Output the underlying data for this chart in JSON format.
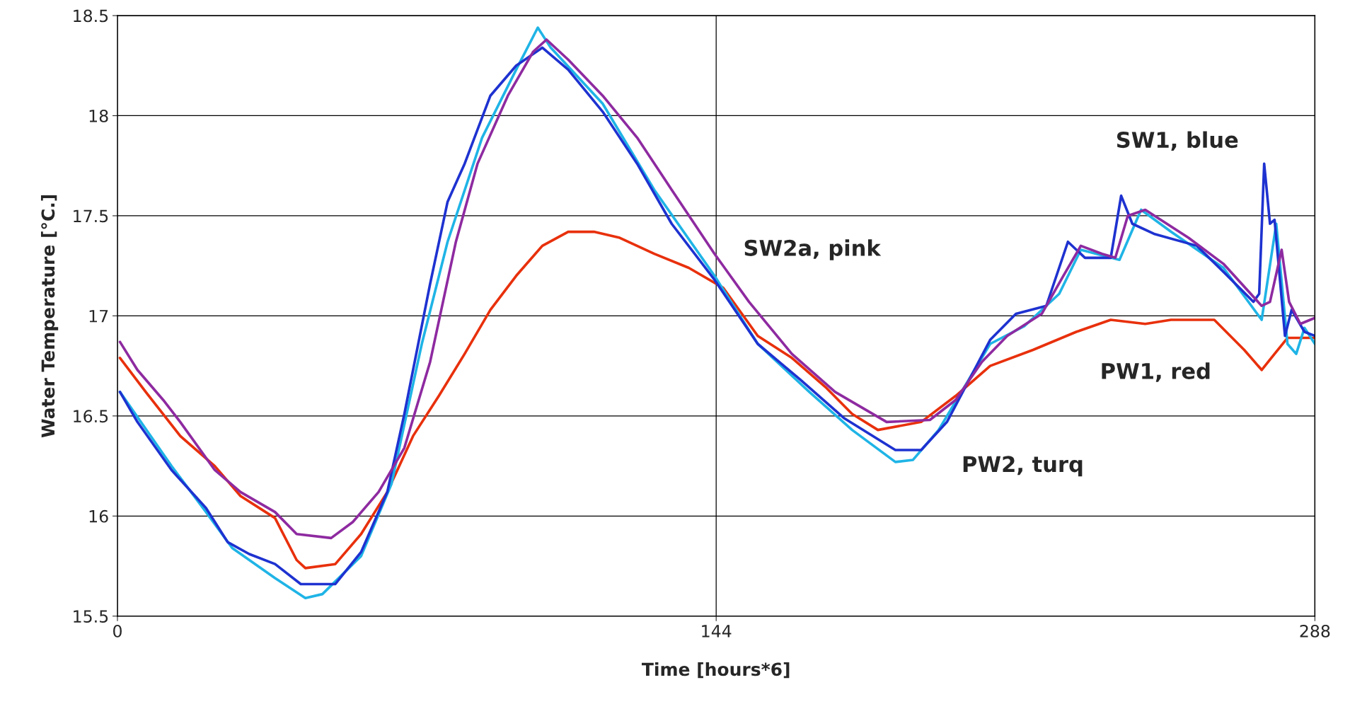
{
  "chart_data": {
    "type": "line",
    "xlabel": "Time [hours*6]",
    "ylabel": "Water Temperature [°C.]",
    "xlim": [
      0,
      288
    ],
    "xticks": [
      0,
      144,
      288
    ],
    "ylim": [
      15.5,
      18.5
    ],
    "yticks": [
      15.5,
      16,
      16.5,
      17,
      17.5,
      18,
      18.5
    ],
    "grid": true,
    "marker": "none",
    "line_style": "solid",
    "annotations": [
      "SW1, blue",
      "SW2a, pink",
      "PW1, red",
      "PW2, turq"
    ],
    "series": [
      {
        "color": "#e8300c",
        "x": [
          0.6,
          6.8,
          15.1,
          23.4,
          29.6,
          37.9,
          43.1,
          45.2,
          52.4,
          58.6,
          64.9,
          71.1,
          77.3,
          83.5,
          89.7,
          95.9,
          102.2,
          108.4,
          114.6,
          120.8,
          129.1,
          137.4,
          145.7,
          154,
          162.2,
          170.5,
          176.7,
          182.9,
          193.3,
          201.6,
          209.9,
          220.2,
          230.6,
          238.9,
          247.2,
          253.4,
          263.8,
          271,
          275.2,
          278.3,
          281.4,
          288
        ],
        "values": [
          16.79,
          16.62,
          16.4,
          16.25,
          16.1,
          15.99,
          15.78,
          15.74,
          15.76,
          15.91,
          16.12,
          16.4,
          16.6,
          16.81,
          17.03,
          17.2,
          17.35,
          17.42,
          17.42,
          17.39,
          17.31,
          17.24,
          17.14,
          16.9,
          16.79,
          16.64,
          16.51,
          16.43,
          16.47,
          16.6,
          16.75,
          16.83,
          16.92,
          16.98,
          16.96,
          16.98,
          16.98,
          16.83,
          16.73,
          16.81,
          16.89,
          16.89
        ]
      },
      {
        "color": "#1fb4e6",
        "x": [
          0.6,
          13,
          21.3,
          27.6,
          37.9,
          45.2,
          49.3,
          58.6,
          65.9,
          73.2,
          79.4,
          87.7,
          95.9,
          101.1,
          104.2,
          116.7,
          129.1,
          143.6,
          154,
          166.4,
          176.7,
          187.1,
          191.3,
          197.5,
          209.9,
          218.2,
          226.5,
          231.7,
          241,
          246.2,
          253.4,
          266,
          275.2,
          278.7,
          281.4,
          283.5,
          285.5,
          288
        ],
        "values": [
          16.62,
          16.25,
          16.02,
          15.84,
          15.69,
          15.59,
          15.61,
          15.8,
          16.16,
          16.86,
          17.37,
          17.89,
          18.23,
          18.44,
          18.34,
          18.06,
          17.63,
          17.2,
          16.86,
          16.62,
          16.43,
          16.27,
          16.28,
          16.43,
          16.86,
          16.95,
          17.11,
          17.33,
          17.28,
          17.53,
          17.42,
          17.24,
          16.98,
          17.46,
          16.86,
          16.81,
          16.94,
          16.86
        ]
      },
      {
        "color": "#1e32d0",
        "x": [
          0.6,
          4.8,
          13,
          21.3,
          26.5,
          31.7,
          37.9,
          44.1,
          52.4,
          58.6,
          64.9,
          69,
          75.2,
          79.4,
          83.5,
          89.7,
          95.9,
          102.2,
          108.4,
          116.7,
          125,
          133.3,
          143.6,
          154,
          164.3,
          174.7,
          187.1,
          193.3,
          199.5,
          209.9,
          216.1,
          223.4,
          228.6,
          232.7,
          238.9,
          241.4,
          244.1,
          249.3,
          259.6,
          266,
          273.2,
          274.6,
          275.8,
          277.2,
          278.3,
          280.8,
          282.4,
          285.5,
          288
        ],
        "values": [
          16.62,
          16.47,
          16.23,
          16.04,
          15.87,
          15.81,
          15.76,
          15.66,
          15.66,
          15.82,
          16.12,
          16.51,
          17.16,
          17.57,
          17.76,
          18.1,
          18.25,
          18.34,
          18.23,
          18.02,
          17.76,
          17.46,
          17.18,
          16.86,
          16.68,
          16.49,
          16.33,
          16.33,
          16.47,
          16.88,
          17.01,
          17.05,
          17.37,
          17.29,
          17.29,
          17.6,
          17.46,
          17.41,
          17.35,
          17.22,
          17.07,
          17.11,
          17.76,
          17.46,
          17.48,
          16.9,
          17.03,
          16.92,
          16.9
        ]
      },
      {
        "color": "#8e2aa0",
        "x": [
          0.6,
          4.8,
          11,
          15.1,
          23.4,
          29.6,
          37.9,
          43.1,
          51.4,
          56.6,
          62.8,
          69,
          75.2,
          81.4,
          86.6,
          93.9,
          100,
          103.2,
          108.4,
          116.7,
          125,
          133.3,
          143.6,
          151.9,
          162.2,
          172.6,
          185,
          195.4,
          201.6,
          207.9,
          214,
          222.3,
          227.5,
          231.7,
          236.8,
          240,
          243,
          247.2,
          257.6,
          266,
          275.2,
          277.2,
          280,
          281.8,
          284.5,
          288
        ],
        "values": [
          16.87,
          16.73,
          16.58,
          16.47,
          16.23,
          16.12,
          16.02,
          15.91,
          15.89,
          15.97,
          16.12,
          16.34,
          16.77,
          17.37,
          17.76,
          18.1,
          18.32,
          18.38,
          18.28,
          18.1,
          17.89,
          17.63,
          17.31,
          17.07,
          16.81,
          16.62,
          16.47,
          16.48,
          16.58,
          16.77,
          16.9,
          17.01,
          17.2,
          17.35,
          17.31,
          17.29,
          17.5,
          17.53,
          17.39,
          17.26,
          17.05,
          17.07,
          17.33,
          17.07,
          16.96,
          16.99
        ]
      }
    ]
  }
}
